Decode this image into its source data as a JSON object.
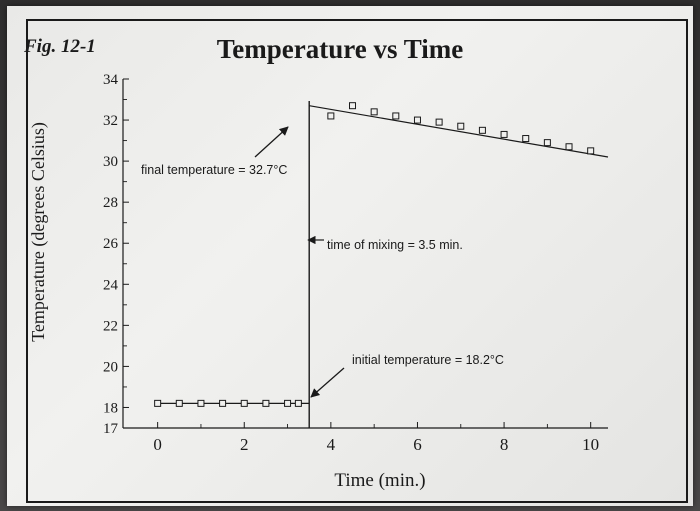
{
  "figure_label": "Fig. 12-1",
  "chart_data": {
    "type": "scatter",
    "title": "Temperature vs Time",
    "xlabel": "Time (min.)",
    "ylabel": "Temperature (degrees Celsius)",
    "xlim": [
      -0.8,
      10.4
    ],
    "ylim": [
      17,
      34
    ],
    "x_ticks": [
      0,
      2,
      4,
      6,
      8,
      10
    ],
    "y_ticks": [
      17,
      18,
      20,
      22,
      24,
      26,
      28,
      30,
      32,
      34
    ],
    "grid": false,
    "series": [
      {
        "points": [
          {
            "x": 0,
            "y": 18.2
          },
          {
            "x": 0.5,
            "y": 18.2
          },
          {
            "x": 1,
            "y": 18.2
          },
          {
            "x": 1.5,
            "y": 18.2
          },
          {
            "x": 2,
            "y": 18.2
          },
          {
            "x": 2.5,
            "y": 18.2
          },
          {
            "x": 3,
            "y": 18.2
          },
          {
            "x": 3.25,
            "y": 18.2
          },
          {
            "x": 4,
            "y": 32.2
          },
          {
            "x": 4.5,
            "y": 32.7
          },
          {
            "x": 5,
            "y": 32.4
          },
          {
            "x": 5.5,
            "y": 32.2
          },
          {
            "x": 6,
            "y": 32.0
          },
          {
            "x": 6.5,
            "y": 31.9
          },
          {
            "x": 7,
            "y": 31.7
          },
          {
            "x": 7.5,
            "y": 31.5
          },
          {
            "x": 8,
            "y": 31.3
          },
          {
            "x": 8.5,
            "y": 31.1
          },
          {
            "x": 9,
            "y": 30.9
          },
          {
            "x": 9.5,
            "y": 30.7
          },
          {
            "x": 10,
            "y": 30.5
          }
        ],
        "fit_lines": [
          {
            "from": {
              "x": 0,
              "y": 18.2
            },
            "to": {
              "x": 3.5,
              "y": 18.2
            }
          },
          {
            "from": {
              "x": 3.5,
              "y": 32.7
            },
            "to": {
              "x": 10.4,
              "y": 30.2
            }
          }
        ]
      }
    ],
    "mixing_time": 3.5,
    "annotations": {
      "final": "final temperature = 32.7°C",
      "mixing": "time of mixing = 3.5 min.",
      "initial": "initial temperature = 18.2°C"
    }
  }
}
